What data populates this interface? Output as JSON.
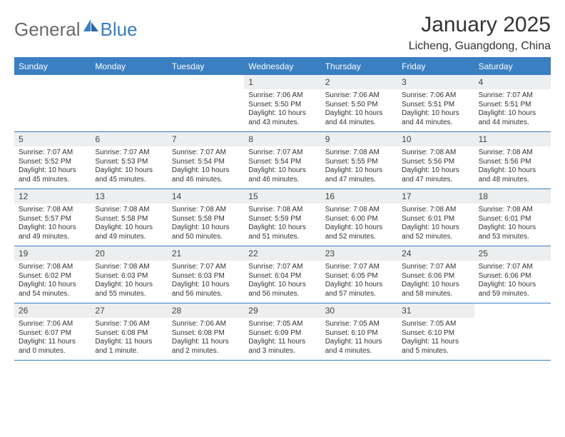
{
  "logo": {
    "part1": "General",
    "part2": "Blue"
  },
  "title": "January 2025",
  "location": "Licheng, Guangdong, China",
  "colors": {
    "accent": "#3a7fc2",
    "header_bg": "#3a7fc2",
    "header_text": "#ffffff",
    "daynum_bg": "#eceeef",
    "text": "#333333",
    "logo_gray": "#6a6a6a"
  },
  "weekdays": [
    "Sunday",
    "Monday",
    "Tuesday",
    "Wednesday",
    "Thursday",
    "Friday",
    "Saturday"
  ],
  "weeks": [
    [
      {
        "n": "",
        "sunrise": "",
        "sunset": "",
        "daylight": ""
      },
      {
        "n": "",
        "sunrise": "",
        "sunset": "",
        "daylight": ""
      },
      {
        "n": "",
        "sunrise": "",
        "sunset": "",
        "daylight": ""
      },
      {
        "n": "1",
        "sunrise": "7:06 AM",
        "sunset": "5:50 PM",
        "daylight": "10 hours and 43 minutes."
      },
      {
        "n": "2",
        "sunrise": "7:06 AM",
        "sunset": "5:50 PM",
        "daylight": "10 hours and 44 minutes."
      },
      {
        "n": "3",
        "sunrise": "7:06 AM",
        "sunset": "5:51 PM",
        "daylight": "10 hours and 44 minutes."
      },
      {
        "n": "4",
        "sunrise": "7:07 AM",
        "sunset": "5:51 PM",
        "daylight": "10 hours and 44 minutes."
      }
    ],
    [
      {
        "n": "5",
        "sunrise": "7:07 AM",
        "sunset": "5:52 PM",
        "daylight": "10 hours and 45 minutes."
      },
      {
        "n": "6",
        "sunrise": "7:07 AM",
        "sunset": "5:53 PM",
        "daylight": "10 hours and 45 minutes."
      },
      {
        "n": "7",
        "sunrise": "7:07 AM",
        "sunset": "5:54 PM",
        "daylight": "10 hours and 46 minutes."
      },
      {
        "n": "8",
        "sunrise": "7:07 AM",
        "sunset": "5:54 PM",
        "daylight": "10 hours and 46 minutes."
      },
      {
        "n": "9",
        "sunrise": "7:08 AM",
        "sunset": "5:55 PM",
        "daylight": "10 hours and 47 minutes."
      },
      {
        "n": "10",
        "sunrise": "7:08 AM",
        "sunset": "5:56 PM",
        "daylight": "10 hours and 47 minutes."
      },
      {
        "n": "11",
        "sunrise": "7:08 AM",
        "sunset": "5:56 PM",
        "daylight": "10 hours and 48 minutes."
      }
    ],
    [
      {
        "n": "12",
        "sunrise": "7:08 AM",
        "sunset": "5:57 PM",
        "daylight": "10 hours and 49 minutes."
      },
      {
        "n": "13",
        "sunrise": "7:08 AM",
        "sunset": "5:58 PM",
        "daylight": "10 hours and 49 minutes."
      },
      {
        "n": "14",
        "sunrise": "7:08 AM",
        "sunset": "5:58 PM",
        "daylight": "10 hours and 50 minutes."
      },
      {
        "n": "15",
        "sunrise": "7:08 AM",
        "sunset": "5:59 PM",
        "daylight": "10 hours and 51 minutes."
      },
      {
        "n": "16",
        "sunrise": "7:08 AM",
        "sunset": "6:00 PM",
        "daylight": "10 hours and 52 minutes."
      },
      {
        "n": "17",
        "sunrise": "7:08 AM",
        "sunset": "6:01 PM",
        "daylight": "10 hours and 52 minutes."
      },
      {
        "n": "18",
        "sunrise": "7:08 AM",
        "sunset": "6:01 PM",
        "daylight": "10 hours and 53 minutes."
      }
    ],
    [
      {
        "n": "19",
        "sunrise": "7:08 AM",
        "sunset": "6:02 PM",
        "daylight": "10 hours and 54 minutes."
      },
      {
        "n": "20",
        "sunrise": "7:08 AM",
        "sunset": "6:03 PM",
        "daylight": "10 hours and 55 minutes."
      },
      {
        "n": "21",
        "sunrise": "7:07 AM",
        "sunset": "6:03 PM",
        "daylight": "10 hours and 56 minutes."
      },
      {
        "n": "22",
        "sunrise": "7:07 AM",
        "sunset": "6:04 PM",
        "daylight": "10 hours and 56 minutes."
      },
      {
        "n": "23",
        "sunrise": "7:07 AM",
        "sunset": "6:05 PM",
        "daylight": "10 hours and 57 minutes."
      },
      {
        "n": "24",
        "sunrise": "7:07 AM",
        "sunset": "6:06 PM",
        "daylight": "10 hours and 58 minutes."
      },
      {
        "n": "25",
        "sunrise": "7:07 AM",
        "sunset": "6:06 PM",
        "daylight": "10 hours and 59 minutes."
      }
    ],
    [
      {
        "n": "26",
        "sunrise": "7:06 AM",
        "sunset": "6:07 PM",
        "daylight": "11 hours and 0 minutes."
      },
      {
        "n": "27",
        "sunrise": "7:06 AM",
        "sunset": "6:08 PM",
        "daylight": "11 hours and 1 minute."
      },
      {
        "n": "28",
        "sunrise": "7:06 AM",
        "sunset": "6:08 PM",
        "daylight": "11 hours and 2 minutes."
      },
      {
        "n": "29",
        "sunrise": "7:05 AM",
        "sunset": "6:09 PM",
        "daylight": "11 hours and 3 minutes."
      },
      {
        "n": "30",
        "sunrise": "7:05 AM",
        "sunset": "6:10 PM",
        "daylight": "11 hours and 4 minutes."
      },
      {
        "n": "31",
        "sunrise": "7:05 AM",
        "sunset": "6:10 PM",
        "daylight": "11 hours and 5 minutes."
      },
      {
        "n": "",
        "sunrise": "",
        "sunset": "",
        "daylight": ""
      }
    ]
  ],
  "labels": {
    "sunrise": "Sunrise: ",
    "sunset": "Sunset: ",
    "daylight": "Daylight: "
  }
}
